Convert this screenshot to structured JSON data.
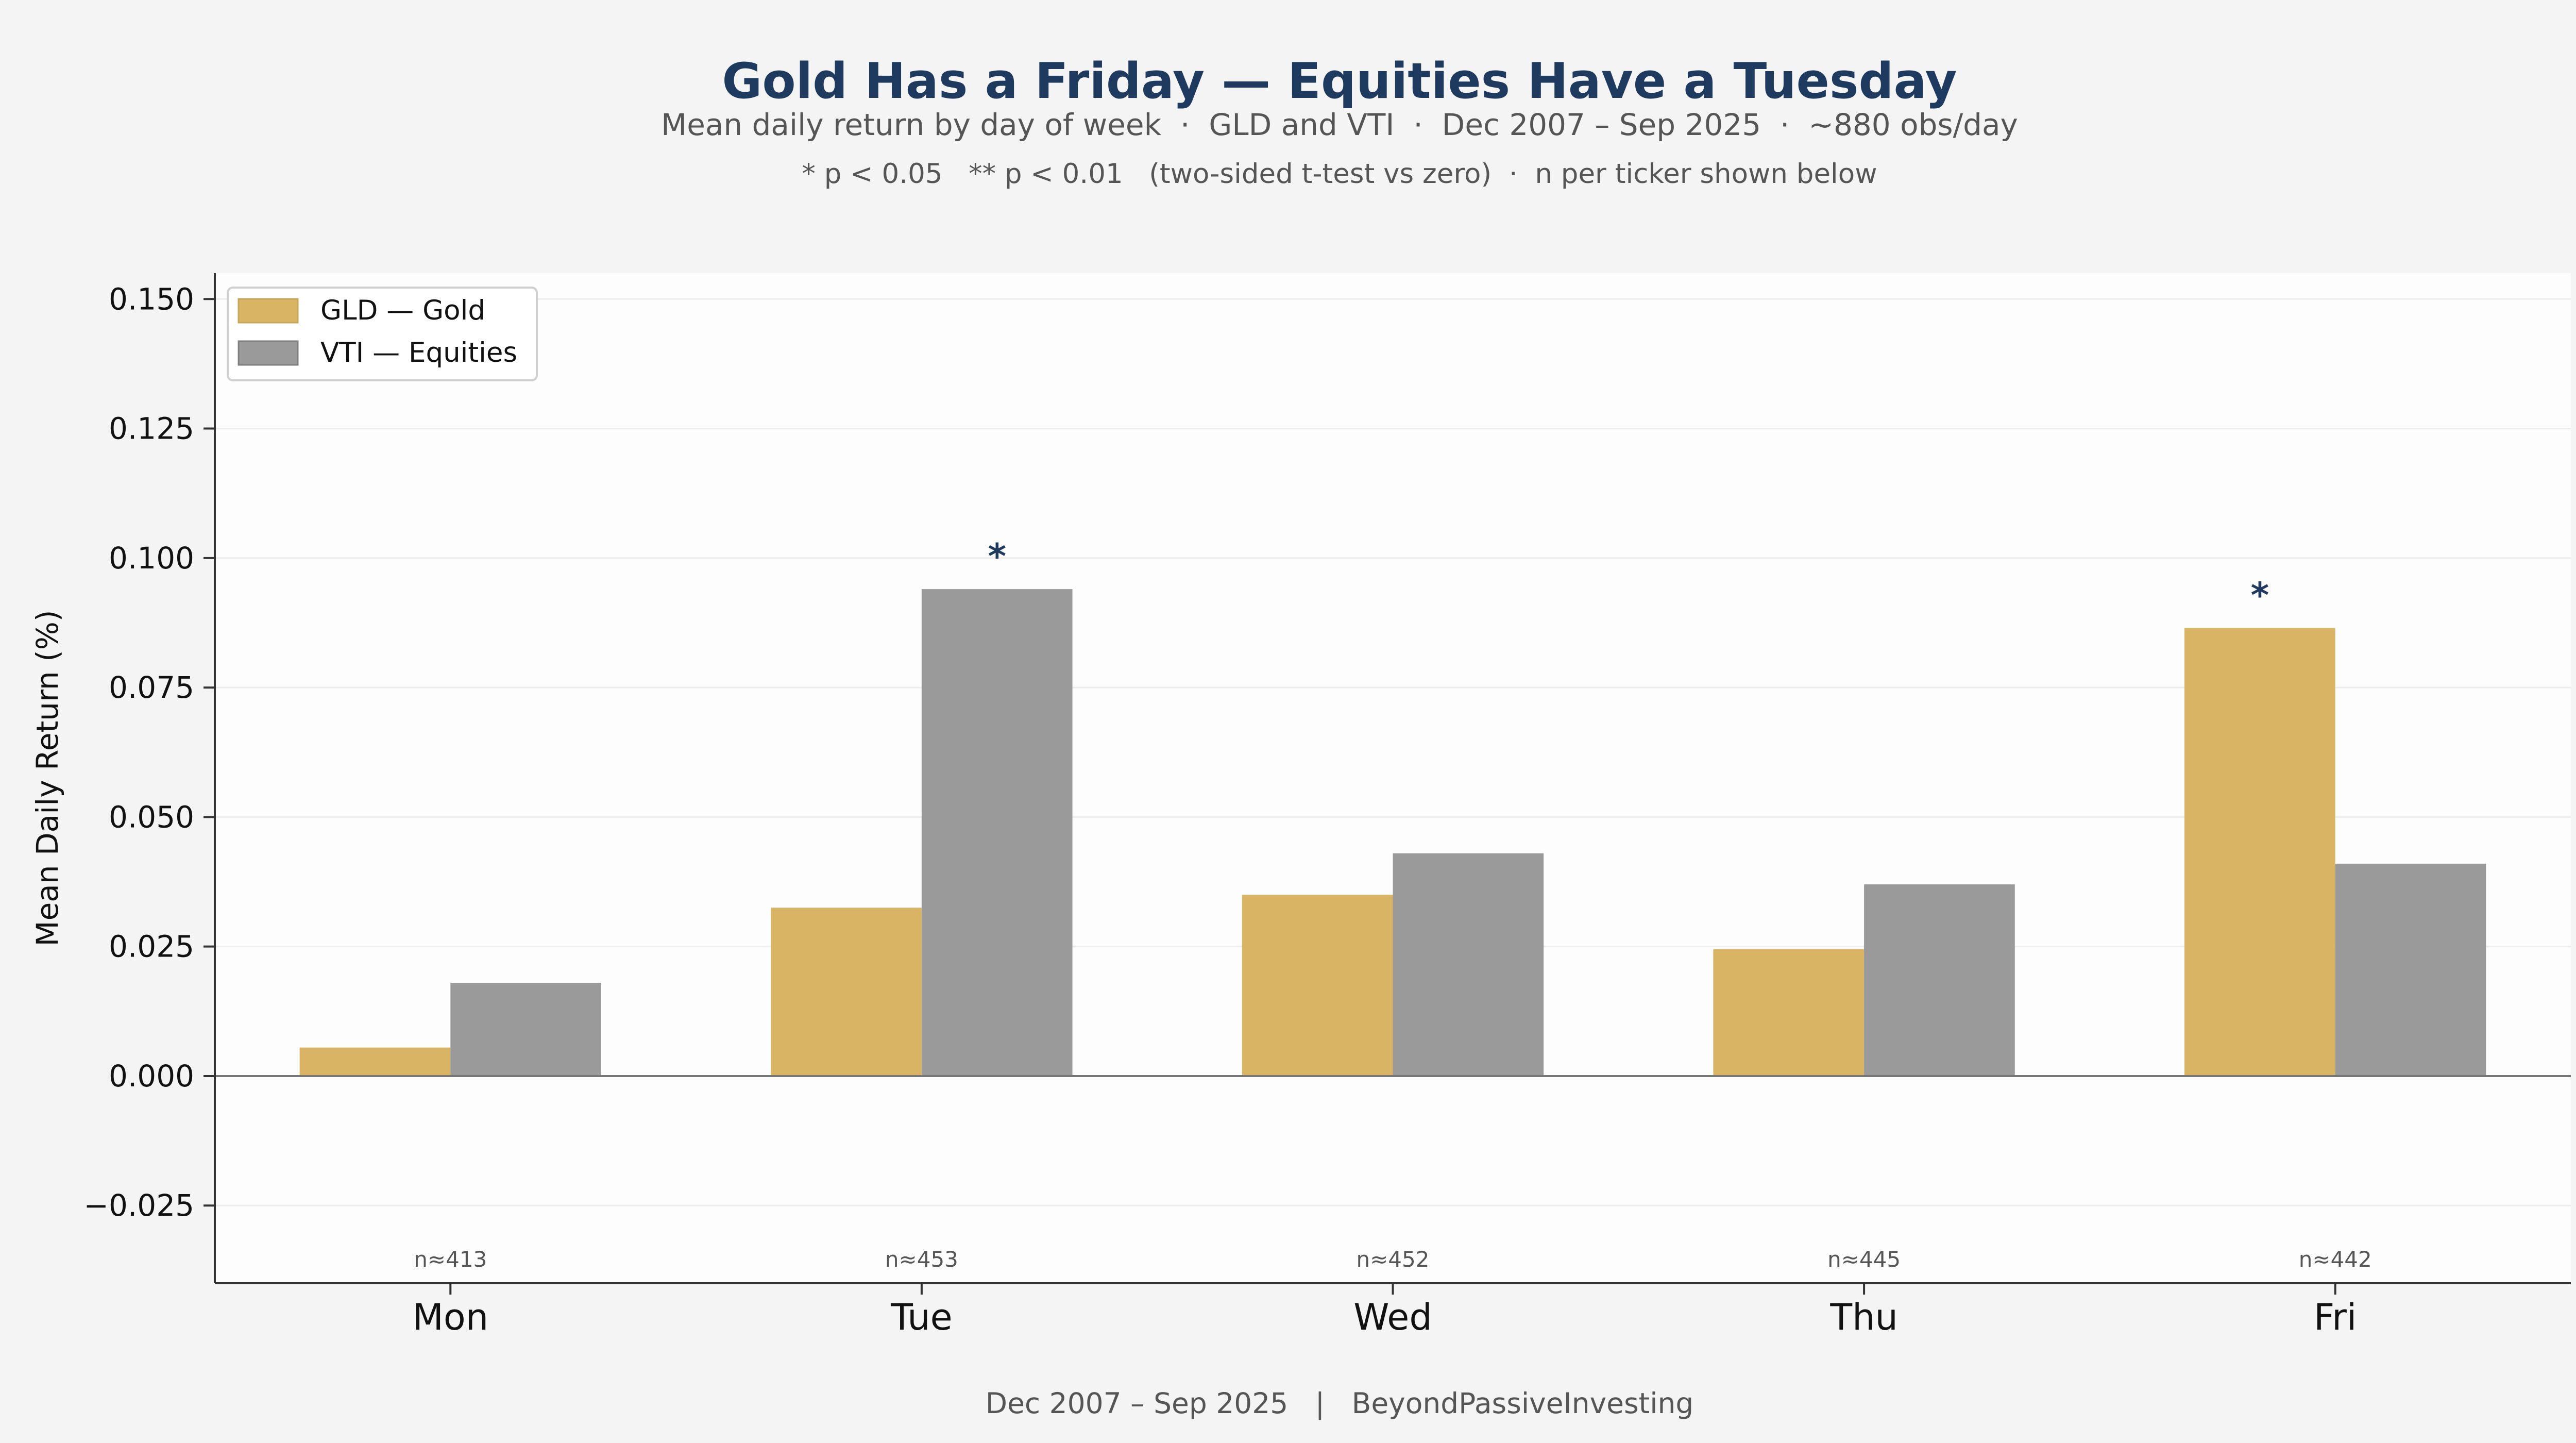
{
  "chart_data": {
    "type": "bar",
    "title": "Gold Has a Friday — Equities Have a Tuesday",
    "subtitle": "Mean daily return by day of week  ·  GLD and VTI  ·  Dec 2007 – Sep 2025  ·  ~880 obs/day",
    "note": "* p < 0.05   ** p < 0.01   (two-sided t-test vs zero)  ·  n per ticker shown below",
    "footer": "Dec 2007 – Sep 2025   |   BeyondPassiveInvesting",
    "xlabel": "",
    "ylabel": "Mean Daily Return (%)",
    "categories": [
      "Mon",
      "Tue",
      "Wed",
      "Thu",
      "Fri"
    ],
    "series": [
      {
        "name": "GLD — Gold",
        "color": "#d9b465",
        "values": [
          0.0055,
          0.0325,
          0.035,
          0.0245,
          0.0865
        ]
      },
      {
        "name": "VTI — Equities",
        "color": "#9a9a9a",
        "values": [
          0.018,
          0.094,
          0.043,
          0.037,
          0.041
        ]
      }
    ],
    "significance": [
      {
        "category": "Tue",
        "series": "VTI — Equities",
        "label": "*"
      },
      {
        "category": "Fri",
        "series": "GLD — Gold",
        "label": "*"
      }
    ],
    "n_labels": [
      "n≈413",
      "n≈453",
      "n≈452",
      "n≈445",
      "n≈442"
    ],
    "ylim": [
      -0.04,
      0.155
    ],
    "yticks": [
      -0.025,
      0.0,
      0.025,
      0.05,
      0.075,
      0.1,
      0.125,
      0.15
    ],
    "ytick_labels": [
      "−0.025",
      "0.000",
      "0.025",
      "0.050",
      "0.075",
      "0.100",
      "0.125",
      "0.150"
    ],
    "grid": "horizontal",
    "legend": "top-left",
    "significance_color": "#1f3a5f"
  }
}
